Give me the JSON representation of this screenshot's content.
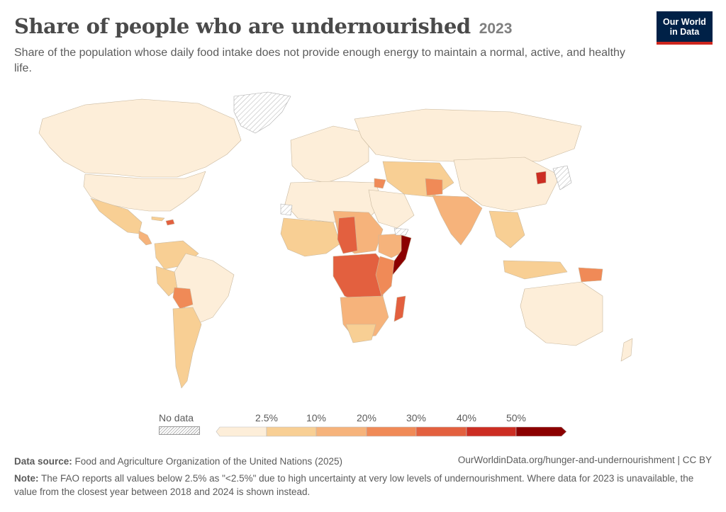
{
  "header": {
    "title": "Share of people who are undernourished",
    "year": "2023",
    "subtitle": "Share of the population whose daily food intake does not provide enough energy to maintain a normal, active, and healthy life."
  },
  "logo": {
    "line1": "Our World",
    "line2": "in Data"
  },
  "legend": {
    "no_data_label": "No data",
    "ticks": [
      "2.5%",
      "10%",
      "20%",
      "30%",
      "40%",
      "50%"
    ],
    "colors": [
      "#fdeed9",
      "#f8cf94",
      "#f6b37b",
      "#f08a57",
      "#e3603f",
      "#cc2d22",
      "#8b0000"
    ]
  },
  "footer": {
    "source_label": "Data source:",
    "source_text": "Food and Agriculture Organization of the United Nations (2025)",
    "url": "OurWorldinData.org/hunger-and-undernourishment | CC BY",
    "note_label": "Note:",
    "note_text": "The FAO reports all values below 2.5% as \"<2.5%\" due to high uncertainty at very low levels of undernourishment. Where data for 2023 is unavailable, the value from the closest year between 2018 and 2024 is shown instead."
  }
}
